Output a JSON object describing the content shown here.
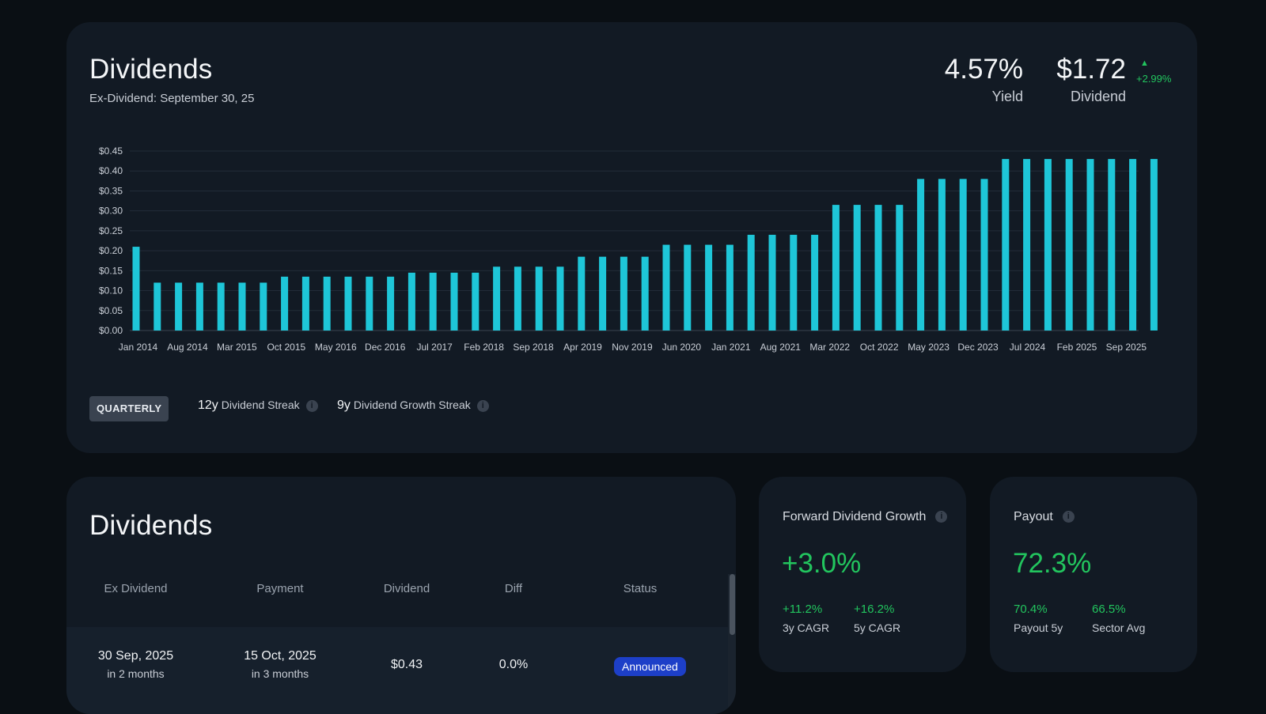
{
  "summary": {
    "title": "Dividends",
    "ex_dividend": "Ex-Dividend: September 30, 25",
    "yield_value": "4.57%",
    "yield_label": "Yield",
    "dividend_value": "$1.72",
    "dividend_label": "Dividend",
    "dividend_change": "+2.99%",
    "frequency_label": "QUARTERLY",
    "streak_value": "12y",
    "streak_label": "Dividend Streak",
    "growth_streak_value": "9y",
    "growth_streak_label": "Dividend Growth Streak",
    "up_color": "#22c55e"
  },
  "chart_data": {
    "type": "bar",
    "bar_color": "#1ec6d8",
    "ylim": [
      0,
      0.45
    ],
    "y_ticks": [
      "$0.00",
      "$0.05",
      "$0.10",
      "$0.15",
      "$0.20",
      "$0.25",
      "$0.30",
      "$0.35",
      "$0.40",
      "$0.45"
    ],
    "x_tick_labels": [
      "Jan 2014",
      "Aug 2014",
      "Mar 2015",
      "Oct 2015",
      "May 2016",
      "Dec 2016",
      "Jul 2017",
      "Feb 2018",
      "Sep 2018",
      "Apr 2019",
      "Nov 2019",
      "Jun 2020",
      "Jan 2021",
      "Aug 2021",
      "Mar 2022",
      "Oct 2022",
      "May 2023",
      "Dec 2023",
      "Jul 2024",
      "Feb 2025",
      "Sep 2025"
    ],
    "values": [
      0.21,
      0.12,
      0.12,
      0.12,
      0.12,
      0.12,
      0.12,
      0.135,
      0.135,
      0.135,
      0.135,
      0.135,
      0.135,
      0.145,
      0.145,
      0.145,
      0.145,
      0.16,
      0.16,
      0.16,
      0.16,
      0.185,
      0.185,
      0.185,
      0.185,
      0.215,
      0.215,
      0.215,
      0.215,
      0.24,
      0.24,
      0.24,
      0.24,
      0.315,
      0.315,
      0.315,
      0.315,
      0.38,
      0.38,
      0.38,
      0.38,
      0.43,
      0.43,
      0.43,
      0.43,
      0.43,
      0.43,
      0.43,
      0.43
    ]
  },
  "table": {
    "title": "Dividends",
    "headers": [
      "Ex Dividend",
      "Payment",
      "Dividend",
      "Diff",
      "Status"
    ],
    "rows": [
      {
        "ex_date": "30 Sep, 2025",
        "ex_rel": "in 2 months",
        "pay_date": "15 Oct, 2025",
        "pay_rel": "in 3 months",
        "dividend": "$0.43",
        "diff": "0.0%",
        "status": "Announced"
      }
    ]
  },
  "forward_growth": {
    "title": "Forward Dividend Growth",
    "value": "+3.0%",
    "cagr3_value": "+11.2%",
    "cagr3_label": "3y CAGR",
    "cagr5_value": "+16.2%",
    "cagr5_label": "5y CAGR"
  },
  "payout": {
    "title": "Payout",
    "value": "72.3%",
    "payout5_value": "70.4%",
    "payout5_label": "Payout 5y",
    "sector_value": "66.5%",
    "sector_label": "Sector Avg"
  }
}
